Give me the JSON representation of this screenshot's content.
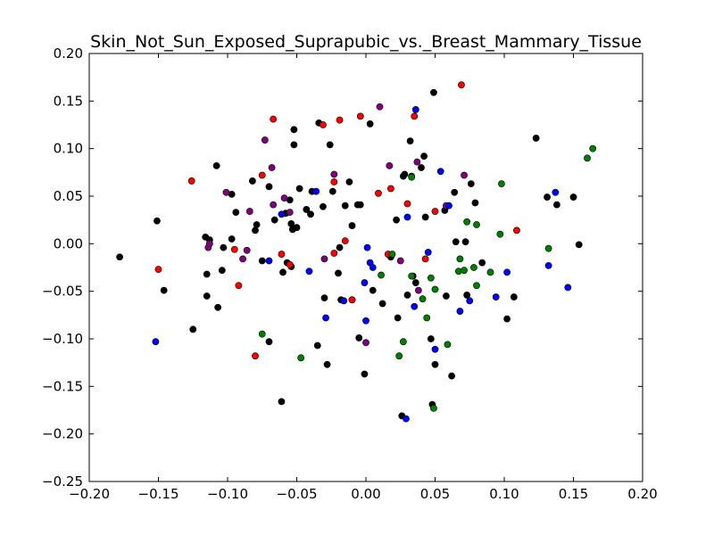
{
  "chart_data": {
    "type": "scatter",
    "title": "Skin_Not_Sun_Exposed_Suprapubic_vs._Breast_Mammary_Tissue",
    "xlabel": "",
    "ylabel": "",
    "xlim": [
      -0.2,
      0.2
    ],
    "ylim": [
      -0.25,
      0.2
    ],
    "x_ticks": [
      -0.2,
      -0.15,
      -0.1,
      -0.05,
      0.0,
      0.05,
      0.1,
      0.15,
      0.2
    ],
    "x_tick_labels": [
      "−0.20",
      "−0.15",
      "−0.10",
      "−0.05",
      "0.00",
      "0.05",
      "0.10",
      "0.15",
      "0.20"
    ],
    "y_ticks": [
      -0.25,
      -0.2,
      -0.15,
      -0.1,
      -0.05,
      0.0,
      0.05,
      0.1,
      0.15,
      0.2
    ],
    "y_tick_labels": [
      "−0.25",
      "−0.20",
      "−0.15",
      "−0.10",
      "−0.05",
      "0.00",
      "0.05",
      "0.10",
      "0.15",
      "0.20"
    ],
    "grid": false,
    "series": [
      {
        "color": "#000000",
        "points": [
          [
            -0.178,
            -0.014
          ],
          [
            -0.151,
            0.024
          ],
          [
            -0.146,
            -0.049
          ],
          [
            -0.125,
            -0.09
          ],
          [
            -0.116,
            0.007
          ],
          [
            -0.115,
            -0.032
          ],
          [
            -0.115,
            -0.055
          ],
          [
            -0.113,
            0.004
          ],
          [
            -0.108,
            0.082
          ],
          [
            -0.107,
            -0.067
          ],
          [
            -0.104,
            -0.028
          ],
          [
            -0.103,
            -0.004
          ],
          [
            -0.097,
            0.052
          ],
          [
            -0.097,
            0.005
          ],
          [
            -0.094,
            0.033
          ],
          [
            -0.082,
            0.066
          ],
          [
            -0.08,
            0.014
          ],
          [
            -0.079,
            0.02
          ],
          [
            -0.075,
            -0.018
          ],
          [
            -0.07,
            -0.103
          ],
          [
            -0.07,
            0.06
          ],
          [
            -0.066,
            0.025
          ],
          [
            -0.061,
            -0.166
          ],
          [
            -0.06,
            -0.03
          ],
          [
            -0.058,
            0.032
          ],
          [
            -0.057,
            -0.02
          ],
          [
            -0.055,
            0.046
          ],
          [
            -0.054,
            0.021
          ],
          [
            -0.054,
            -0.024
          ],
          [
            -0.053,
            0.015
          ],
          [
            -0.052,
            0.12
          ],
          [
            -0.052,
            0.104
          ],
          [
            -0.05,
            0.017
          ],
          [
            -0.048,
            0.058
          ],
          [
            -0.043,
            0.036
          ],
          [
            -0.04,
            0.031
          ],
          [
            -0.039,
            0.055
          ],
          [
            -0.035,
            -0.107
          ],
          [
            -0.034,
            0.127
          ],
          [
            -0.031,
            0.039
          ],
          [
            -0.03,
            -0.057
          ],
          [
            -0.028,
            -0.127
          ],
          [
            -0.026,
            0.104
          ],
          [
            -0.024,
            0.055
          ],
          [
            -0.02,
            -0.031
          ],
          [
            -0.019,
            -0.004
          ],
          [
            -0.018,
            -0.059
          ],
          [
            -0.015,
            0.04
          ],
          [
            -0.012,
            0.065
          ],
          [
            -0.01,
            0.019
          ],
          [
            -0.01,
            -0.059
          ],
          [
            -0.006,
            0.041
          ],
          [
            -0.005,
            -0.099
          ],
          [
            -0.004,
            0.041
          ],
          [
            -0.001,
            -0.137
          ],
          [
            0.003,
            0.126
          ],
          [
            0.005,
            -0.049
          ],
          [
            0.012,
            -0.063
          ],
          [
            0.018,
            -0.014
          ],
          [
            0.022,
            0.025
          ],
          [
            0.023,
            -0.078
          ],
          [
            0.026,
            -0.181
          ],
          [
            0.027,
            0.071
          ],
          [
            0.028,
            0.073
          ],
          [
            0.03,
            -0.054
          ],
          [
            0.032,
            0.108
          ],
          [
            0.033,
            0.071
          ],
          [
            0.034,
            -0.034
          ],
          [
            0.036,
            -0.041
          ],
          [
            0.04,
            0.08
          ],
          [
            0.042,
            0.092
          ],
          [
            0.043,
            0.028
          ],
          [
            0.047,
            -0.1
          ],
          [
            0.048,
            -0.169
          ],
          [
            0.049,
            0.159
          ],
          [
            0.05,
            -0.127
          ],
          [
            0.057,
            0.035
          ],
          [
            0.058,
            -0.055
          ],
          [
            0.062,
            -0.139
          ],
          [
            0.064,
            0.054
          ],
          [
            0.065,
            0.002
          ],
          [
            0.072,
            0.002
          ],
          [
            0.073,
            -0.054
          ],
          [
            0.076,
            0.063
          ],
          [
            0.079,
            0.043
          ],
          [
            0.084,
            -0.02
          ],
          [
            0.102,
            -0.079
          ],
          [
            0.107,
            -0.056
          ],
          [
            0.123,
            0.111
          ],
          [
            0.131,
            0.049
          ],
          [
            0.138,
            0.041
          ],
          [
            0.15,
            0.049
          ],
          [
            0.154,
            -0.001
          ]
        ]
      },
      {
        "color": "#ff0000",
        "points": [
          [
            -0.15,
            -0.027
          ],
          [
            -0.126,
            0.066
          ],
          [
            -0.095,
            -0.006
          ],
          [
            -0.092,
            -0.044
          ],
          [
            -0.08,
            -0.118
          ],
          [
            -0.075,
            0.072
          ],
          [
            -0.067,
            0.131
          ],
          [
            -0.061,
            -0.011
          ],
          [
            -0.055,
            -0.022
          ],
          [
            -0.031,
            0.125
          ],
          [
            -0.023,
            0.065
          ],
          [
            -0.023,
            -0.01
          ],
          [
            -0.019,
            0.13
          ],
          [
            -0.015,
            0.003
          ],
          [
            -0.01,
            -0.059
          ],
          [
            -0.004,
            0.134
          ],
          [
            0.009,
            0.053
          ],
          [
            0.016,
            -0.011
          ],
          [
            0.018,
            0.058
          ],
          [
            0.03,
            0.042
          ],
          [
            0.035,
            0.134
          ],
          [
            0.043,
            -0.016
          ],
          [
            0.05,
            0.034
          ],
          [
            0.069,
            0.167
          ],
          [
            0.109,
            0.014
          ]
        ]
      },
      {
        "color": "#800080",
        "points": [
          [
            -0.114,
            -0.004
          ],
          [
            -0.113,
            0.0
          ],
          [
            -0.101,
            0.054
          ],
          [
            -0.089,
            -0.016
          ],
          [
            -0.086,
            -0.007
          ],
          [
            -0.084,
            0.034
          ],
          [
            -0.073,
            0.109
          ],
          [
            -0.068,
            0.08
          ],
          [
            -0.067,
            0.041
          ],
          [
            -0.059,
            0.048
          ],
          [
            -0.055,
            0.033
          ],
          [
            -0.03,
            -0.016
          ],
          [
            -0.023,
            0.073
          ],
          [
            0.0,
            -0.104
          ],
          [
            0.01,
            0.144
          ],
          [
            0.017,
            0.082
          ],
          [
            0.025,
            -0.018
          ],
          [
            0.037,
            0.086
          ],
          [
            0.038,
            -0.049
          ],
          [
            0.058,
            0.04
          ],
          [
            0.071,
            0.072
          ]
        ]
      },
      {
        "color": "#0000ff",
        "points": [
          [
            -0.152,
            -0.103
          ],
          [
            -0.07,
            -0.018
          ],
          [
            -0.061,
            0.031
          ],
          [
            -0.041,
            -0.029
          ],
          [
            -0.036,
            0.055
          ],
          [
            -0.029,
            -0.078
          ],
          [
            -0.016,
            -0.06
          ],
          [
            -0.001,
            -0.041
          ],
          [
            0.0,
            -0.081
          ],
          [
            0.001,
            -0.004
          ],
          [
            0.003,
            -0.02
          ],
          [
            0.005,
            -0.025
          ],
          [
            0.029,
            -0.184
          ],
          [
            0.03,
            0.028
          ],
          [
            0.035,
            -0.066
          ],
          [
            0.036,
            0.141
          ],
          [
            0.045,
            -0.009
          ],
          [
            0.05,
            -0.111
          ],
          [
            0.054,
            0.076
          ],
          [
            0.06,
            0.04
          ],
          [
            0.068,
            -0.071
          ],
          [
            0.075,
            -0.06
          ],
          [
            0.094,
            -0.056
          ],
          [
            0.102,
            -0.03
          ],
          [
            0.132,
            -0.023
          ],
          [
            0.137,
            0.054
          ],
          [
            0.146,
            -0.046
          ]
        ]
      },
      {
        "color": "#008000",
        "points": [
          [
            -0.075,
            -0.095
          ],
          [
            -0.047,
            -0.12
          ],
          [
            0.011,
            -0.033
          ],
          [
            0.019,
            -0.011
          ],
          [
            0.024,
            -0.118
          ],
          [
            0.027,
            -0.103
          ],
          [
            0.033,
            0.07
          ],
          [
            0.033,
            -0.034
          ],
          [
            0.041,
            -0.058
          ],
          [
            0.044,
            -0.078
          ],
          [
            0.047,
            -0.036
          ],
          [
            0.049,
            -0.173
          ],
          [
            0.05,
            -0.048
          ],
          [
            0.059,
            -0.106
          ],
          [
            0.067,
            -0.029
          ],
          [
            0.068,
            -0.016
          ],
          [
            0.071,
            -0.028
          ],
          [
            0.073,
            0.023
          ],
          [
            0.078,
            -0.025
          ],
          [
            0.08,
            -0.044
          ],
          [
            0.08,
            0.02
          ],
          [
            0.09,
            -0.03
          ],
          [
            0.097,
            0.01
          ],
          [
            0.098,
            0.063
          ],
          [
            0.132,
            -0.005
          ],
          [
            0.16,
            0.09
          ],
          [
            0.164,
            0.1
          ]
        ]
      }
    ]
  }
}
